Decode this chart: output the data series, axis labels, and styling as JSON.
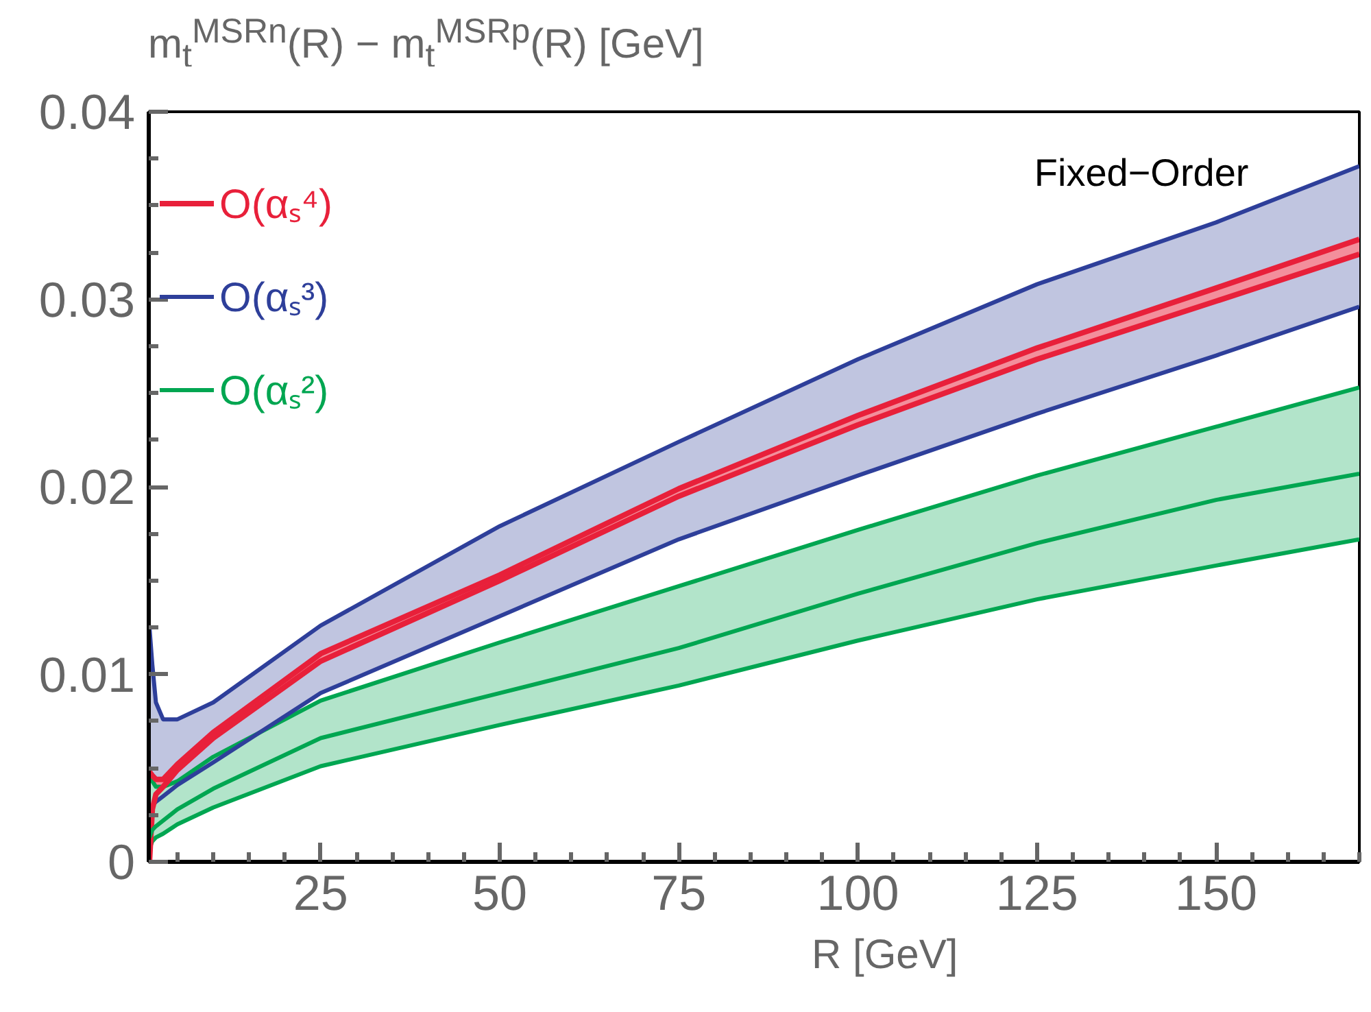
{
  "chart_data": {
    "type": "line",
    "ylabel": "m$_{t}$$^{MSRn}$(R) − m$_{t}$$^{MSRp}$(R) [GeV]",
    "xlabel": "R [GeV]",
    "annotations": [
      "Fixed−Order"
    ],
    "x": [
      1.1,
      1.5,
      2,
      3,
      5,
      10,
      25,
      50,
      75,
      100,
      125,
      150,
      170
    ],
    "xlim": [
      1,
      170
    ],
    "xticks": [
      25,
      50,
      75,
      100,
      125,
      150
    ],
    "ylim": [
      0,
      0.04
    ],
    "yticks": [
      0,
      0.01,
      0.02,
      0.03,
      0.04
    ],
    "grid": false,
    "legend": "top left",
    "marker": "none",
    "line_style": "solid",
    "series": [
      {
        "name": "O(αₛ⁴)",
        "color": "#e8203a",
        "values": [
          0.0048,
          0.0046,
          0.0044,
          0.0044,
          0.0052,
          0.0069,
          0.0111,
          0.0153,
          0.0199,
          0.0238,
          0.0274,
          0.0306,
          0.0332
        ],
        "lower": [
          0.0,
          0.0028,
          0.0036,
          0.004,
          0.0049,
          0.0066,
          0.0107,
          0.015,
          0.0195,
          0.0233,
          0.0268,
          0.0299,
          0.0324
        ],
        "upper": [
          0.0048,
          0.0046,
          0.0044,
          0.0044,
          0.0052,
          0.0069,
          0.0111,
          0.0153,
          0.0199,
          0.0238,
          0.0274,
          0.0306,
          0.0332
        ]
      },
      {
        "name": "O(αₛ³)",
        "color": "#2e3f9a",
        "values": [
          0.0125,
          0.0105,
          0.0085,
          0.0076,
          0.0076,
          0.0085,
          0.0126,
          0.0179,
          0.0224,
          0.0268,
          0.0308,
          0.0341,
          0.0371
        ],
        "lower": [
          0.0028,
          0.003,
          0.0032,
          0.0035,
          0.0041,
          0.0053,
          0.009,
          0.0131,
          0.0172,
          0.0206,
          0.0239,
          0.027,
          0.0296
        ],
        "upper": [
          0.0125,
          0.0105,
          0.0085,
          0.0076,
          0.0076,
          0.0085,
          0.0126,
          0.0179,
          0.0224,
          0.0268,
          0.0308,
          0.0341,
          0.0371
        ]
      },
      {
        "name": "O(αₛ²)",
        "color": "#00a651",
        "values": [
          0.0013,
          0.0017,
          0.0019,
          0.0022,
          0.0028,
          0.0039,
          0.0066,
          0.009,
          0.0114,
          0.0143,
          0.017,
          0.0193,
          0.0207
        ],
        "lower": [
          0.0007,
          0.0011,
          0.0013,
          0.0015,
          0.002,
          0.0029,
          0.0051,
          0.0073,
          0.0094,
          0.0118,
          0.014,
          0.0158,
          0.0172
        ],
        "upper": [
          0.0045,
          0.0043,
          0.004,
          0.004,
          0.0043,
          0.0056,
          0.0086,
          0.0117,
          0.0147,
          0.0177,
          0.0206,
          0.0232,
          0.0253
        ]
      },
      {
        "color": "#e8203a",
        "values": [
          0.0,
          0.0028,
          0.0036,
          0.004,
          0.0049,
          0.0066,
          0.0107,
          0.015,
          0.0195,
          0.0233,
          0.0268,
          0.0299,
          0.0324
        ]
      },
      {
        "color": "#2e3f9a",
        "values": [
          0.0028,
          0.003,
          0.0032,
          0.0035,
          0.0041,
          0.0053,
          0.009,
          0.0131,
          0.0172,
          0.0206,
          0.0239,
          0.027,
          0.0296
        ]
      },
      {
        "color": "#00a651",
        "values": [
          0.0045,
          0.0043,
          0.004,
          0.004,
          0.0043,
          0.0056,
          0.0086,
          0.0117,
          0.0147,
          0.0177,
          0.0206,
          0.0232,
          0.0253
        ]
      },
      {
        "color": "#00a651",
        "values": [
          0.0007,
          0.0011,
          0.0013,
          0.0015,
          0.002,
          0.0029,
          0.0051,
          0.0073,
          0.0094,
          0.0118,
          0.014,
          0.0158,
          0.0172
        ]
      }
    ]
  }
}
